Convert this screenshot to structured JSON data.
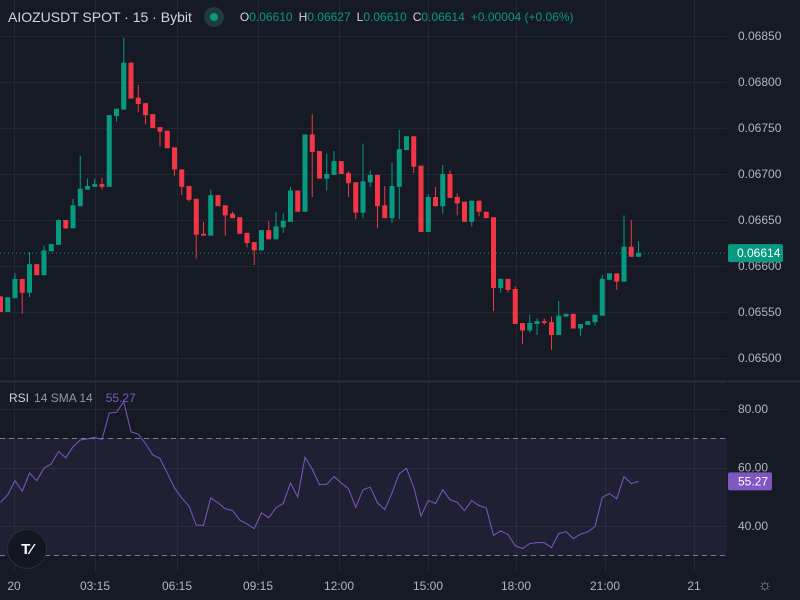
{
  "header": {
    "symbol": "AIOZUSDT SPOT · 15 · Bybit",
    "status_icon": "market-open-dot-icon",
    "o_label": "O",
    "o": "0.06610",
    "h_label": "H",
    "h": "0.06627",
    "l_label": "L",
    "l": "0.06610",
    "c_label": "C",
    "c": "0.06614",
    "change": "+0.00004 (+0.06%)"
  },
  "price_axis": {
    "ticks": [
      "0.06850",
      "0.06800",
      "0.06750",
      "0.06700",
      "0.06650",
      "0.06600",
      "0.06550",
      "0.06500"
    ],
    "last_price": "0.06614"
  },
  "rsi": {
    "name": "RSI",
    "params": "14 SMA 14",
    "value": "55.27",
    "ticks": [
      "80.00",
      "60.00",
      "40.00"
    ]
  },
  "time_axis": {
    "ticks": [
      "20",
      "03:15",
      "06:15",
      "09:15",
      "12:00",
      "15:00",
      "18:00",
      "21:00",
      "21"
    ]
  },
  "logo": "TV",
  "colors": {
    "background": "#161a25",
    "up": "#089981",
    "down": "#f23645",
    "rsi": "#7e57c2",
    "grid": "#232733"
  },
  "chart_data": [
    {
      "type": "candlestick",
      "title": "AIOZUSDT SPOT · 15 · Bybit",
      "ylim": [
        0.0648,
        0.06875
      ],
      "y_ticks": [
        0.0685,
        0.068,
        0.0675,
        0.067,
        0.0665,
        0.066,
        0.0655,
        0.065
      ],
      "x_ticks": [
        "20",
        "03:15",
        "06:15",
        "09:15",
        "12:00",
        "15:00",
        "18:00",
        "21:00",
        "21"
      ],
      "grid": true,
      "last_price": 0.06614,
      "candles_ohlc": [
        [
          0.06567,
          0.06567,
          0.0655,
          0.0655
        ],
        [
          0.0655,
          0.06566,
          0.0655,
          0.06566
        ],
        [
          0.06565,
          0.06592,
          0.06565,
          0.06586
        ],
        [
          0.06586,
          0.06586,
          0.06548,
          0.06571
        ],
        [
          0.06571,
          0.06615,
          0.06566,
          0.06602
        ],
        [
          0.06602,
          0.06602,
          0.0659,
          0.0659
        ],
        [
          0.0659,
          0.06622,
          0.0659,
          0.06617
        ],
        [
          0.06616,
          0.06624,
          0.06616,
          0.06624
        ],
        [
          0.06623,
          0.06651,
          0.06623,
          0.0665
        ],
        [
          0.0665,
          0.0665,
          0.0664,
          0.06641
        ],
        [
          0.06641,
          0.06673,
          0.06641,
          0.06666
        ],
        [
          0.06665,
          0.0672,
          0.06665,
          0.06684
        ],
        [
          0.06683,
          0.06695,
          0.06683,
          0.06687
        ],
        [
          0.06686,
          0.06695,
          0.06686,
          0.06689
        ],
        [
          0.06689,
          0.06696,
          0.06683,
          0.06686
        ],
        [
          0.06686,
          0.06764,
          0.06686,
          0.06764
        ],
        [
          0.06763,
          0.06771,
          0.06757,
          0.06771
        ],
        [
          0.0677,
          0.06848,
          0.0677,
          0.06821
        ],
        [
          0.06821,
          0.06821,
          0.06782,
          0.06782
        ],
        [
          0.06783,
          0.06797,
          0.06767,
          0.06776
        ],
        [
          0.06777,
          0.06777,
          0.06754,
          0.06764
        ],
        [
          0.06765,
          0.06765,
          0.0675,
          0.0675
        ],
        [
          0.06751,
          0.06751,
          0.0673,
          0.06746
        ],
        [
          0.06747,
          0.06747,
          0.06728,
          0.06728
        ],
        [
          0.06729,
          0.06729,
          0.06698,
          0.06705
        ],
        [
          0.06705,
          0.06705,
          0.06677,
          0.06686
        ],
        [
          0.06687,
          0.06687,
          0.0667,
          0.06672
        ],
        [
          0.06673,
          0.06673,
          0.06608,
          0.06634
        ],
        [
          0.06635,
          0.06648,
          0.06633,
          0.06633
        ],
        [
          0.06633,
          0.06683,
          0.06633,
          0.06677
        ],
        [
          0.06677,
          0.06677,
          0.06665,
          0.06665
        ],
        [
          0.06666,
          0.06666,
          0.06633,
          0.06655
        ],
        [
          0.06657,
          0.06659,
          0.06652,
          0.06652
        ],
        [
          0.06653,
          0.06653,
          0.06635,
          0.06635
        ],
        [
          0.06636,
          0.06636,
          0.0662,
          0.06625
        ],
        [
          0.06626,
          0.06626,
          0.06601,
          0.06617
        ],
        [
          0.06617,
          0.06639,
          0.06617,
          0.06639
        ],
        [
          0.06639,
          0.06649,
          0.06629,
          0.06629
        ],
        [
          0.06629,
          0.06659,
          0.06629,
          0.06643
        ],
        [
          0.06642,
          0.06657,
          0.06636,
          0.06649
        ],
        [
          0.06648,
          0.06686,
          0.06648,
          0.06682
        ],
        [
          0.06682,
          0.06682,
          0.06659,
          0.06659
        ],
        [
          0.06659,
          0.06743,
          0.06659,
          0.06743
        ],
        [
          0.06743,
          0.06765,
          0.06675,
          0.06724
        ],
        [
          0.06725,
          0.06725,
          0.06695,
          0.06695
        ],
        [
          0.06695,
          0.06722,
          0.06682,
          0.067
        ],
        [
          0.06699,
          0.06725,
          0.06699,
          0.06714
        ],
        [
          0.06714,
          0.06714,
          0.067,
          0.067
        ],
        [
          0.06701,
          0.06703,
          0.06675,
          0.0669
        ],
        [
          0.06691,
          0.06691,
          0.06651,
          0.06658
        ],
        [
          0.06658,
          0.06733,
          0.06652,
          0.06692
        ],
        [
          0.06691,
          0.06704,
          0.06686,
          0.06699
        ],
        [
          0.06699,
          0.06699,
          0.06641,
          0.06665
        ],
        [
          0.06666,
          0.06687,
          0.06652,
          0.06652
        ],
        [
          0.06652,
          0.06712,
          0.06647,
          0.06687
        ],
        [
          0.06686,
          0.06748,
          0.06651,
          0.06727
        ],
        [
          0.06726,
          0.06741,
          0.06726,
          0.06741
        ],
        [
          0.06741,
          0.06741,
          0.06701,
          0.06708
        ],
        [
          0.06709,
          0.06709,
          0.06637,
          0.06637
        ],
        [
          0.06637,
          0.06678,
          0.06637,
          0.06675
        ],
        [
          0.06675,
          0.06686,
          0.06665,
          0.06665
        ],
        [
          0.06665,
          0.0671,
          0.06657,
          0.067
        ],
        [
          0.067,
          0.06704,
          0.06674,
          0.06674
        ],
        [
          0.06675,
          0.06679,
          0.06655,
          0.06668
        ],
        [
          0.0667,
          0.0667,
          0.06648,
          0.06648
        ],
        [
          0.06648,
          0.06671,
          0.06643,
          0.06671
        ],
        [
          0.06671,
          0.06671,
          0.06654,
          0.06659
        ],
        [
          0.06659,
          0.06659,
          0.06652,
          0.06652
        ],
        [
          0.06653,
          0.06653,
          0.06551,
          0.06576
        ],
        [
          0.06576,
          0.06586,
          0.06571,
          0.06586
        ],
        [
          0.06586,
          0.06586,
          0.06571,
          0.06574
        ],
        [
          0.06575,
          0.06578,
          0.06537,
          0.06537
        ],
        [
          0.06538,
          0.06538,
          0.06515,
          0.0653
        ],
        [
          0.0653,
          0.06547,
          0.06528,
          0.06538
        ],
        [
          0.06537,
          0.06543,
          0.06525,
          0.0654
        ],
        [
          0.0654,
          0.06543,
          0.06536,
          0.06538
        ],
        [
          0.06539,
          0.06545,
          0.06509,
          0.06525
        ],
        [
          0.06525,
          0.06562,
          0.06525,
          0.06546
        ],
        [
          0.06545,
          0.06548,
          0.06545,
          0.06548
        ],
        [
          0.06548,
          0.06548,
          0.06532,
          0.06532
        ],
        [
          0.06532,
          0.06537,
          0.06524,
          0.06537
        ],
        [
          0.06536,
          0.0654,
          0.06536,
          0.0654
        ],
        [
          0.06539,
          0.06547,
          0.06535,
          0.06547
        ],
        [
          0.06546,
          0.0659,
          0.06546,
          0.06586
        ],
        [
          0.06585,
          0.06592,
          0.06585,
          0.06592
        ],
        [
          0.06592,
          0.06592,
          0.06574,
          0.06583
        ],
        [
          0.06583,
          0.06655,
          0.06583,
          0.06621
        ],
        [
          0.06621,
          0.0665,
          0.0661,
          0.0661
        ],
        [
          0.0661,
          0.06627,
          0.0661,
          0.06614
        ]
      ]
    },
    {
      "type": "line",
      "title": "RSI 14 SMA 14",
      "ylim": [
        25,
        89
      ],
      "y_ticks": [
        80,
        60,
        40
      ],
      "bands": [
        70,
        30
      ],
      "grid": true,
      "values": [
        48.1,
        50.7,
        55.5,
        51.9,
        58.1,
        55.5,
        59.8,
        61.2,
        65.5,
        63.3,
        67.1,
        69.4,
        69.8,
        70.3,
        69.6,
        78.6,
        78.9,
        82.5,
        72.2,
        71.4,
        68.2,
        64.3,
        63.1,
        58.1,
        53.0,
        49.6,
        46.8,
        40.3,
        40.2,
        49.6,
        47.9,
        45.9,
        45.3,
        42.0,
        40.7,
        39.1,
        44.5,
        42.8,
        46.2,
        47.7,
        54.7,
        49.9,
        63.5,
        59.4,
        54.1,
        54.3,
        56.9,
        54.7,
        52.7,
        46.4,
        52.4,
        53.3,
        47.9,
        45.6,
        51.3,
        57.9,
        59.7,
        53.3,
        43.4,
        48.7,
        47.7,
        52.4,
        49.0,
        48.1,
        45.3,
        48.7,
        47.0,
        46.2,
        36.8,
        38.3,
        37.1,
        33.2,
        32.3,
        34.0,
        34.3,
        34.3,
        32.6,
        37.4,
        38.1,
        35.7,
        37.2,
        38.0,
        39.8,
        49.8,
        51.1,
        49.3,
        56.9,
        54.5,
        55.27
      ]
    }
  ]
}
